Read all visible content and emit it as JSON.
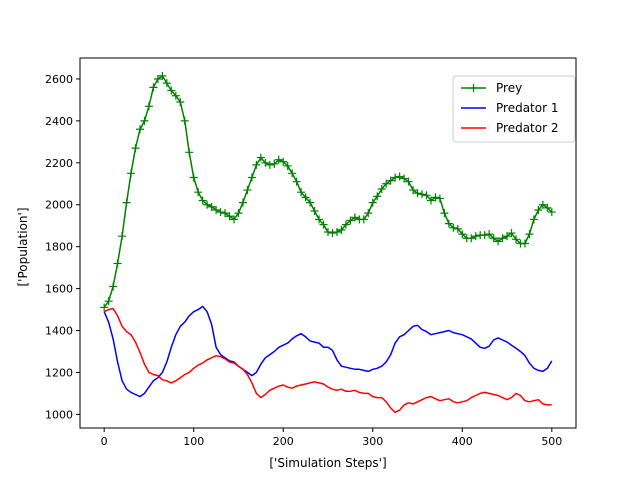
{
  "chart_data": {
    "type": "line",
    "title": "",
    "xlabel": "['Simulation Steps']",
    "ylabel": "['Population']",
    "xlim": [
      -27,
      527
    ],
    "ylim": [
      935,
      2700
    ],
    "xticks": [
      0,
      100,
      200,
      300,
      400,
      500
    ],
    "yticks": [
      1000,
      1200,
      1400,
      1600,
      1800,
      2000,
      2200,
      2400,
      2600
    ],
    "grid": false,
    "legend_position": "top-right",
    "series": [
      {
        "name": "Prey",
        "color": "#008000",
        "marker": "+",
        "points": [
          [
            0,
            1510
          ],
          [
            5,
            1540
          ],
          [
            10,
            1610
          ],
          [
            15,
            1720
          ],
          [
            20,
            1850
          ],
          [
            25,
            2010
          ],
          [
            30,
            2150
          ],
          [
            35,
            2270
          ],
          [
            40,
            2360
          ],
          [
            45,
            2400
          ],
          [
            50,
            2470
          ],
          [
            55,
            2560
          ],
          [
            60,
            2600
          ],
          [
            65,
            2615
          ],
          [
            70,
            2580
          ],
          [
            75,
            2545
          ],
          [
            80,
            2520
          ],
          [
            85,
            2490
          ],
          [
            90,
            2400
          ],
          [
            95,
            2250
          ],
          [
            100,
            2130
          ],
          [
            105,
            2060
          ],
          [
            110,
            2020
          ],
          [
            115,
            2000
          ],
          [
            120,
            1990
          ],
          [
            125,
            1975
          ],
          [
            130,
            1965
          ],
          [
            135,
            1960
          ],
          [
            140,
            1945
          ],
          [
            145,
            1930
          ],
          [
            150,
            1960
          ],
          [
            155,
            2010
          ],
          [
            160,
            2070
          ],
          [
            165,
            2130
          ],
          [
            170,
            2190
          ],
          [
            175,
            2225
          ],
          [
            180,
            2200
          ],
          [
            185,
            2190
          ],
          [
            190,
            2195
          ],
          [
            195,
            2215
          ],
          [
            200,
            2205
          ],
          [
            205,
            2185
          ],
          [
            210,
            2150
          ],
          [
            215,
            2110
          ],
          [
            220,
            2060
          ],
          [
            225,
            2035
          ],
          [
            230,
            2010
          ],
          [
            235,
            1970
          ],
          [
            240,
            1930
          ],
          [
            245,
            1905
          ],
          [
            250,
            1870
          ],
          [
            255,
            1865
          ],
          [
            260,
            1870
          ],
          [
            265,
            1880
          ],
          [
            270,
            1905
          ],
          [
            275,
            1925
          ],
          [
            280,
            1940
          ],
          [
            285,
            1930
          ],
          [
            290,
            1930
          ],
          [
            295,
            1960
          ],
          [
            300,
            2010
          ],
          [
            305,
            2040
          ],
          [
            310,
            2075
          ],
          [
            315,
            2100
          ],
          [
            320,
            2115
          ],
          [
            325,
            2130
          ],
          [
            330,
            2135
          ],
          [
            335,
            2125
          ],
          [
            340,
            2110
          ],
          [
            345,
            2070
          ],
          [
            350,
            2055
          ],
          [
            355,
            2050
          ],
          [
            360,
            2045
          ],
          [
            365,
            2020
          ],
          [
            370,
            2035
          ],
          [
            375,
            2030
          ],
          [
            380,
            1960
          ],
          [
            385,
            1910
          ],
          [
            390,
            1890
          ],
          [
            395,
            1885
          ],
          [
            400,
            1860
          ],
          [
            405,
            1840
          ],
          [
            410,
            1840
          ],
          [
            415,
            1850
          ],
          [
            420,
            1855
          ],
          [
            425,
            1855
          ],
          [
            430,
            1860
          ],
          [
            435,
            1840
          ],
          [
            440,
            1825
          ],
          [
            445,
            1840
          ],
          [
            450,
            1850
          ],
          [
            455,
            1865
          ],
          [
            460,
            1835
          ],
          [
            465,
            1815
          ],
          [
            470,
            1815
          ],
          [
            475,
            1860
          ],
          [
            480,
            1930
          ],
          [
            485,
            1975
          ],
          [
            490,
            2000
          ],
          [
            495,
            1985
          ],
          [
            500,
            1965
          ]
        ]
      },
      {
        "name": "Predator 1",
        "color": "#0000ff",
        "marker": "",
        "points": [
          [
            0,
            1490
          ],
          [
            5,
            1440
          ],
          [
            10,
            1360
          ],
          [
            15,
            1250
          ],
          [
            20,
            1160
          ],
          [
            25,
            1120
          ],
          [
            30,
            1105
          ],
          [
            35,
            1095
          ],
          [
            40,
            1085
          ],
          [
            45,
            1100
          ],
          [
            50,
            1130
          ],
          [
            55,
            1160
          ],
          [
            60,
            1175
          ],
          [
            65,
            1200
          ],
          [
            70,
            1250
          ],
          [
            75,
            1320
          ],
          [
            80,
            1380
          ],
          [
            85,
            1420
          ],
          [
            90,
            1440
          ],
          [
            95,
            1470
          ],
          [
            100,
            1490
          ],
          [
            105,
            1500
          ],
          [
            110,
            1515
          ],
          [
            115,
            1490
          ],
          [
            120,
            1430
          ],
          [
            125,
            1320
          ],
          [
            130,
            1285
          ],
          [
            135,
            1270
          ],
          [
            140,
            1255
          ],
          [
            145,
            1250
          ],
          [
            150,
            1230
          ],
          [
            155,
            1215
          ],
          [
            160,
            1200
          ],
          [
            165,
            1185
          ],
          [
            170,
            1200
          ],
          [
            175,
            1240
          ],
          [
            180,
            1270
          ],
          [
            185,
            1285
          ],
          [
            190,
            1300
          ],
          [
            195,
            1320
          ],
          [
            200,
            1330
          ],
          [
            205,
            1340
          ],
          [
            210,
            1360
          ],
          [
            215,
            1375
          ],
          [
            220,
            1385
          ],
          [
            225,
            1370
          ],
          [
            230,
            1350
          ],
          [
            235,
            1345
          ],
          [
            240,
            1340
          ],
          [
            245,
            1320
          ],
          [
            250,
            1320
          ],
          [
            255,
            1305
          ],
          [
            260,
            1260
          ],
          [
            265,
            1230
          ],
          [
            270,
            1225
          ],
          [
            275,
            1220
          ],
          [
            280,
            1215
          ],
          [
            285,
            1215
          ],
          [
            290,
            1210
          ],
          [
            295,
            1205
          ],
          [
            300,
            1215
          ],
          [
            305,
            1220
          ],
          [
            310,
            1230
          ],
          [
            315,
            1250
          ],
          [
            320,
            1285
          ],
          [
            325,
            1340
          ],
          [
            330,
            1370
          ],
          [
            335,
            1380
          ],
          [
            340,
            1400
          ],
          [
            345,
            1420
          ],
          [
            350,
            1425
          ],
          [
            355,
            1405
          ],
          [
            360,
            1395
          ],
          [
            365,
            1380
          ],
          [
            370,
            1385
          ],
          [
            375,
            1390
          ],
          [
            380,
            1395
          ],
          [
            385,
            1400
          ],
          [
            390,
            1390
          ],
          [
            395,
            1385
          ],
          [
            400,
            1380
          ],
          [
            405,
            1370
          ],
          [
            410,
            1360
          ],
          [
            415,
            1340
          ],
          [
            420,
            1320
          ],
          [
            425,
            1315
          ],
          [
            430,
            1325
          ],
          [
            435,
            1355
          ],
          [
            440,
            1365
          ],
          [
            445,
            1355
          ],
          [
            450,
            1345
          ],
          [
            455,
            1330
          ],
          [
            460,
            1315
          ],
          [
            465,
            1300
          ],
          [
            470,
            1280
          ],
          [
            475,
            1245
          ],
          [
            480,
            1220
          ],
          [
            485,
            1210
          ],
          [
            490,
            1205
          ],
          [
            495,
            1220
          ],
          [
            500,
            1255
          ]
        ]
      },
      {
        "name": "Predator 2",
        "color": "#ff0000",
        "marker": "",
        "points": [
          [
            0,
            1490
          ],
          [
            5,
            1500
          ],
          [
            10,
            1505
          ],
          [
            15,
            1470
          ],
          [
            20,
            1420
          ],
          [
            25,
            1395
          ],
          [
            30,
            1380
          ],
          [
            35,
            1345
          ],
          [
            40,
            1295
          ],
          [
            45,
            1240
          ],
          [
            50,
            1200
          ],
          [
            55,
            1190
          ],
          [
            60,
            1185
          ],
          [
            65,
            1165
          ],
          [
            70,
            1160
          ],
          [
            75,
            1150
          ],
          [
            80,
            1160
          ],
          [
            85,
            1175
          ],
          [
            90,
            1190
          ],
          [
            95,
            1200
          ],
          [
            100,
            1220
          ],
          [
            105,
            1235
          ],
          [
            110,
            1245
          ],
          [
            115,
            1260
          ],
          [
            120,
            1270
          ],
          [
            125,
            1280
          ],
          [
            130,
            1275
          ],
          [
            135,
            1265
          ],
          [
            140,
            1250
          ],
          [
            145,
            1245
          ],
          [
            150,
            1230
          ],
          [
            155,
            1215
          ],
          [
            160,
            1190
          ],
          [
            165,
            1150
          ],
          [
            170,
            1100
          ],
          [
            175,
            1080
          ],
          [
            180,
            1095
          ],
          [
            185,
            1115
          ],
          [
            190,
            1125
          ],
          [
            195,
            1135
          ],
          [
            200,
            1140
          ],
          [
            205,
            1130
          ],
          [
            210,
            1125
          ],
          [
            215,
            1135
          ],
          [
            220,
            1140
          ],
          [
            225,
            1145
          ],
          [
            230,
            1150
          ],
          [
            235,
            1155
          ],
          [
            240,
            1150
          ],
          [
            245,
            1145
          ],
          [
            250,
            1130
          ],
          [
            255,
            1120
          ],
          [
            260,
            1115
          ],
          [
            265,
            1120
          ],
          [
            270,
            1110
          ],
          [
            275,
            1110
          ],
          [
            280,
            1115
          ],
          [
            285,
            1105
          ],
          [
            290,
            1100
          ],
          [
            295,
            1100
          ],
          [
            300,
            1085
          ],
          [
            305,
            1080
          ],
          [
            310,
            1080
          ],
          [
            315,
            1060
          ],
          [
            320,
            1030
          ],
          [
            325,
            1010
          ],
          [
            330,
            1020
          ],
          [
            335,
            1045
          ],
          [
            340,
            1055
          ],
          [
            345,
            1050
          ],
          [
            350,
            1060
          ],
          [
            355,
            1070
          ],
          [
            360,
            1080
          ],
          [
            365,
            1085
          ],
          [
            370,
            1075
          ],
          [
            375,
            1065
          ],
          [
            380,
            1070
          ],
          [
            385,
            1075
          ],
          [
            390,
            1060
          ],
          [
            395,
            1055
          ],
          [
            400,
            1060
          ],
          [
            405,
            1065
          ],
          [
            410,
            1080
          ],
          [
            415,
            1090
          ],
          [
            420,
            1100
          ],
          [
            425,
            1105
          ],
          [
            430,
            1100
          ],
          [
            435,
            1095
          ],
          [
            440,
            1090
          ],
          [
            445,
            1080
          ],
          [
            450,
            1070
          ],
          [
            455,
            1080
          ],
          [
            460,
            1100
          ],
          [
            465,
            1090
          ],
          [
            470,
            1065
          ],
          [
            475,
            1060
          ],
          [
            480,
            1065
          ],
          [
            485,
            1070
          ],
          [
            490,
            1050
          ],
          [
            495,
            1045
          ],
          [
            500,
            1045
          ]
        ]
      }
    ]
  }
}
